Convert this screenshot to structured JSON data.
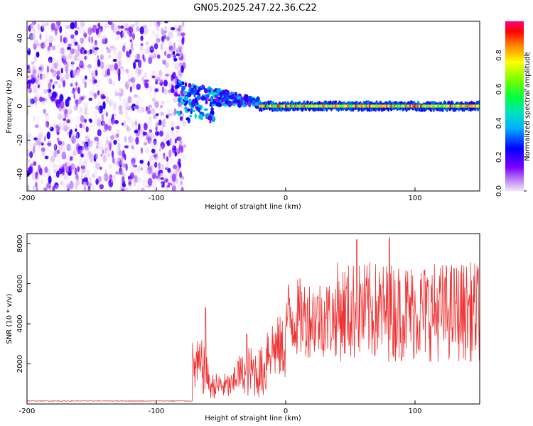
{
  "title": "GN05.2025.247.22.36.C22",
  "chart_data": [
    {
      "type": "heatmap",
      "xlabel": "Height of straight line (km)",
      "ylabel": "Frequency (Hz)",
      "xlim": [
        -200,
        150
      ],
      "ylim": [
        -50,
        50
      ],
      "xticks": [
        -200,
        -100,
        0,
        100
      ],
      "yticks": [
        -40,
        -20,
        0,
        20,
        40
      ],
      "colorbar": {
        "label": "Normalized spectral amplitude",
        "range": [
          0.0,
          1.0
        ],
        "ticks": [
          0.0,
          0.2,
          0.4,
          0.6,
          0.8
        ]
      },
      "features": [
        {
          "region": "noise",
          "x_range": [
            -200,
            -78
          ],
          "freq_range": [
            -50,
            50
          ],
          "amplitude": 0.1
        },
        {
          "region": "transition",
          "x_range": [
            -85,
            -20
          ],
          "freq_range": [
            -15,
            12
          ],
          "amplitude": 0.35
        },
        {
          "region": "carrier",
          "x_range": [
            -20,
            150
          ],
          "freq": 0,
          "amplitude": 0.95
        }
      ]
    },
    {
      "type": "line",
      "xlabel": "Height of straight line (km)",
      "ylabel": "SNR (10 * v/v)",
      "xlim": [
        -200,
        150
      ],
      "ylim": [
        0,
        8500
      ],
      "xticks": [
        -200,
        -100,
        0,
        100
      ],
      "yticks": [
        2000,
        4000,
        6000,
        8000
      ],
      "series": [
        {
          "name": "SNR",
          "color": "#ee3030",
          "segments": [
            {
              "x_range": [
                -200,
                -72
              ],
              "mean": 150,
              "spread": 40
            },
            {
              "x_range": [
                -72,
                -60
              ],
              "mean": 1800,
              "spread": 2800
            },
            {
              "x_range": [
                -60,
                -40
              ],
              "mean": 900,
              "spread": 1300
            },
            {
              "x_range": [
                -40,
                -30
              ],
              "mean": 1500,
              "spread": 2000
            },
            {
              "x_range": [
                -30,
                -15
              ],
              "mean": 1600,
              "spread": 2600
            },
            {
              "x_range": [
                -15,
                0
              ],
              "mean": 2800,
              "spread": 3200
            },
            {
              "x_range": [
                0,
                40
              ],
              "mean": 4300,
              "spread": 4000
            },
            {
              "x_range": [
                40,
                150
              ],
              "mean": 4600,
              "spread": 5000
            }
          ],
          "peaks": [
            {
              "x": -62,
              "y": 4800
            },
            {
              "x": -30,
              "y": 3500
            },
            {
              "x": 55,
              "y": 8200
            },
            {
              "x": 80,
              "y": 8300
            }
          ]
        }
      ]
    }
  ]
}
